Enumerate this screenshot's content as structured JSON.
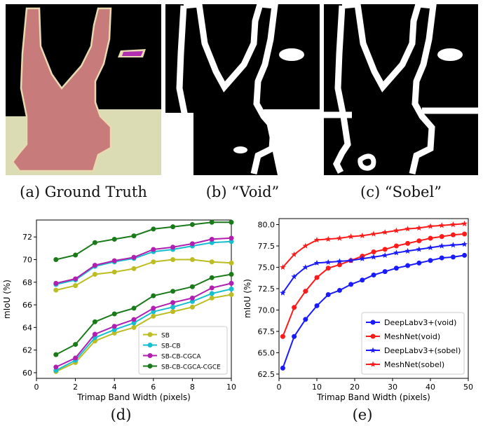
{
  "captions": {
    "a": "(a) Ground Truth",
    "b": "(b) “Void”",
    "c": "(c) “Sobel”",
    "d": "(d)",
    "e": "(e)"
  },
  "colors": {
    "figure_bg": "#000000",
    "person": "#c77b7b",
    "person_outline": "#e8d9b0",
    "floor": "#dcdcb4",
    "accent_purple": "#b030b0",
    "band": "#ffffff"
  },
  "chart_data": [
    {
      "type": "line",
      "xlabel": "Trimap Band Width (pixels)",
      "ylabel": "mIoU (%)",
      "xlim": [
        0,
        10
      ],
      "ylim": [
        59.5,
        73.5
      ],
      "xticks": [
        0,
        2,
        4,
        6,
        8,
        10
      ],
      "yticks": [
        60,
        62,
        64,
        66,
        68,
        70,
        72
      ],
      "legend_position": "lower-right",
      "x": [
        1,
        2,
        3,
        4,
        5,
        6,
        7,
        8,
        9,
        10
      ],
      "series": [
        {
          "name": "SB",
          "color": "#bcbd22",
          "marker": "circle",
          "values": [
            67.3,
            67.7,
            68.7,
            68.9,
            69.2,
            69.8,
            70.0,
            70.0,
            69.8,
            69.7
          ]
        },
        {
          "name": "SB-CB",
          "color": "#17becf",
          "marker": "circle",
          "values": [
            67.8,
            68.2,
            69.4,
            69.8,
            70.1,
            70.7,
            70.9,
            71.2,
            71.5,
            71.6
          ]
        },
        {
          "name": "SB-CB-CGCA",
          "color": "#b01fb0",
          "marker": "circle",
          "values": [
            67.9,
            68.3,
            69.5,
            69.9,
            70.2,
            70.9,
            71.1,
            71.4,
            71.8,
            71.9
          ]
        },
        {
          "name": "SB-CB-CGCA-CGCE",
          "color": "#1a7a1a",
          "marker": "circle",
          "values": [
            70.0,
            70.4,
            71.5,
            71.8,
            72.1,
            72.7,
            72.9,
            73.1,
            73.3,
            73.3
          ]
        },
        {
          "name": "",
          "color": "#bcbd22",
          "marker": "circle",
          "values": [
            60.1,
            60.9,
            62.8,
            63.5,
            64.0,
            65.0,
            65.4,
            65.8,
            66.6,
            66.9
          ]
        },
        {
          "name": "",
          "color": "#17becf",
          "marker": "circle",
          "values": [
            60.2,
            61.1,
            63.1,
            63.8,
            64.4,
            65.4,
            65.8,
            66.3,
            67.0,
            67.4
          ]
        },
        {
          "name": "",
          "color": "#b01fb0",
          "marker": "circle",
          "values": [
            60.5,
            61.3,
            63.4,
            64.1,
            64.7,
            65.7,
            66.2,
            66.6,
            67.5,
            67.9
          ]
        },
        {
          "name": "",
          "color": "#1a7a1a",
          "marker": "circle",
          "values": [
            61.6,
            62.5,
            64.5,
            65.2,
            65.7,
            66.8,
            67.2,
            67.6,
            68.4,
            68.7
          ]
        }
      ]
    },
    {
      "type": "line",
      "xlabel": "Trimap Band Width (pixels)",
      "ylabel": "mIoU (%)",
      "xlim": [
        0,
        50
      ],
      "ylim": [
        62.0,
        80.7
      ],
      "xticks": [
        0,
        10,
        20,
        30,
        40,
        50
      ],
      "yticks": [
        62.5,
        65.0,
        67.5,
        70.0,
        72.5,
        75.0,
        77.5,
        80.0
      ],
      "ytick_labels": [
        "62.5",
        "65.0",
        "67.5",
        "70.0",
        "72.5",
        "75.0",
        "77.5",
        "80.0"
      ],
      "legend_position": "lower-right",
      "x": [
        1,
        4,
        7,
        10,
        13,
        16,
        19,
        22,
        25,
        28,
        31,
        34,
        37,
        40,
        43,
        46,
        49
      ],
      "series": [
        {
          "name": "DeepLabv3+(void)",
          "color": "#1a1aff",
          "marker": "circle",
          "values": [
            63.2,
            66.9,
            68.9,
            70.5,
            71.8,
            72.3,
            73.0,
            73.5,
            74.1,
            74.5,
            74.9,
            75.2,
            75.5,
            75.8,
            76.1,
            76.2,
            76.4
          ]
        },
        {
          "name": "MeshNet(void)",
          "color": "#ff1a1a",
          "marker": "circle",
          "values": [
            66.9,
            70.3,
            72.2,
            73.8,
            74.9,
            75.3,
            75.8,
            76.3,
            76.8,
            77.1,
            77.5,
            77.8,
            78.1,
            78.4,
            78.6,
            78.8,
            78.9
          ]
        },
        {
          "name": "DeepLabv3+(sobel)",
          "color": "#1a1aff",
          "marker": "star",
          "values": [
            72.0,
            73.9,
            75.0,
            75.5,
            75.6,
            75.7,
            75.8,
            76.0,
            76.2,
            76.4,
            76.7,
            76.9,
            77.1,
            77.3,
            77.5,
            77.6,
            77.7
          ]
        },
        {
          "name": "MeshNet(sobel)",
          "color": "#ff1a1a",
          "marker": "star",
          "values": [
            75.0,
            76.5,
            77.5,
            78.2,
            78.3,
            78.4,
            78.6,
            78.7,
            78.9,
            79.1,
            79.3,
            79.5,
            79.6,
            79.8,
            79.9,
            80.0,
            80.1
          ]
        }
      ]
    }
  ]
}
